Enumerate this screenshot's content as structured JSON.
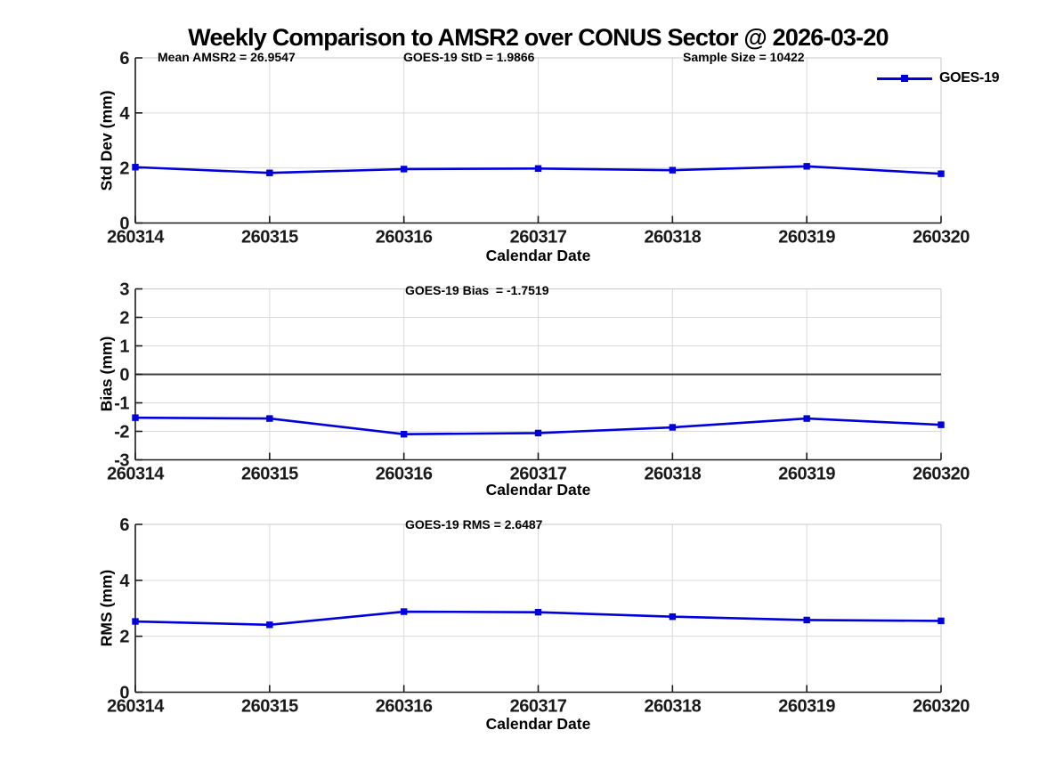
{
  "title": "Weekly Comparison to AMSR2 over CONUS Sector @ 2026-03-20",
  "legend": {
    "label": "GOES-19"
  },
  "colors": {
    "line": "#0000dd",
    "grid": "#d9d9d9",
    "box": "#c9c9c9",
    "axis": "#1a1a1a",
    "zero_line": "#404040"
  },
  "chart_data": [
    {
      "type": "line",
      "panel": "std-dev",
      "ylabel": "Std Dev (mm)",
      "xlabel": "Calendar Date",
      "categories": [
        "260314",
        "260315",
        "260316",
        "260317",
        "260318",
        "260319",
        "260320"
      ],
      "series": [
        {
          "name": "GOES-19",
          "values": [
            2.03,
            1.82,
            1.96,
            1.98,
            1.92,
            2.06,
            1.79
          ]
        }
      ],
      "ylim": [
        0,
        6
      ],
      "yticks": [
        0,
        2,
        4,
        6
      ],
      "grid": true,
      "zero_line": false,
      "legend_position": "top-right-outside",
      "annotations": [
        "Mean AMSR2 = 26.9547",
        "GOES-19 StD = 1.9866",
        "Sample Size = 10422"
      ]
    },
    {
      "type": "line",
      "panel": "bias",
      "ylabel": "Bias (mm)",
      "xlabel": "Calendar Date",
      "categories": [
        "260314",
        "260315",
        "260316",
        "260317",
        "260318",
        "260319",
        "260320"
      ],
      "series": [
        {
          "name": "GOES-19",
          "values": [
            -1.52,
            -1.55,
            -2.1,
            -2.06,
            -1.86,
            -1.55,
            -1.77
          ]
        }
      ],
      "ylim": [
        -3,
        3
      ],
      "yticks": [
        -3,
        -2,
        -1,
        0,
        1,
        2,
        3
      ],
      "grid": true,
      "zero_line": true,
      "annotations": [
        "GOES-19 Bias  = -1.7519"
      ]
    },
    {
      "type": "line",
      "panel": "rms",
      "ylabel": "RMS (mm)",
      "xlabel": "Calendar Date",
      "categories": [
        "260314",
        "260315",
        "260316",
        "260317",
        "260318",
        "260319",
        "260320"
      ],
      "series": [
        {
          "name": "GOES-19",
          "values": [
            2.53,
            2.41,
            2.88,
            2.86,
            2.7,
            2.58,
            2.55
          ]
        }
      ],
      "ylim": [
        0,
        6
      ],
      "yticks": [
        0,
        2,
        4,
        6
      ],
      "grid": true,
      "zero_line": false,
      "annotations": [
        "GOES-19 RMS = 2.6487"
      ]
    }
  ]
}
